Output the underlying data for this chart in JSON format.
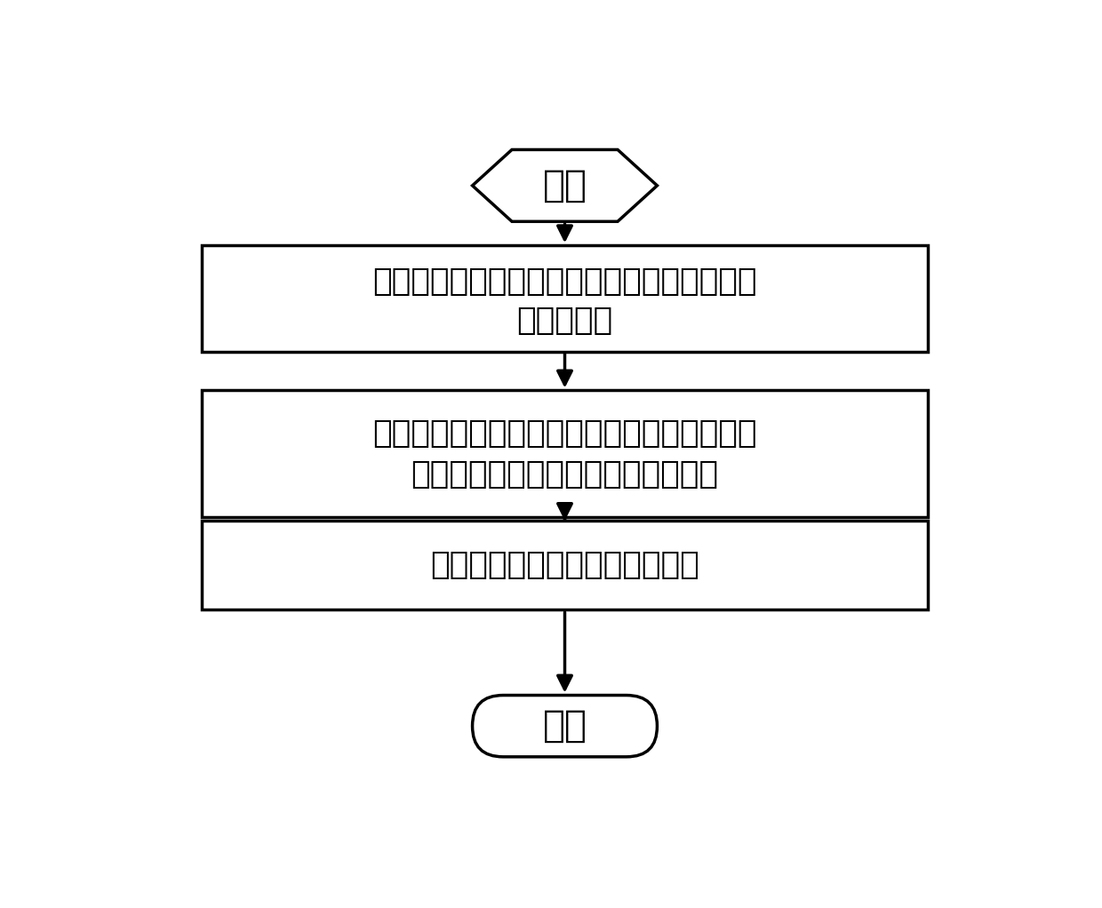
{
  "bg_color": "#ffffff",
  "text_color": "#000000",
  "box_color": "#ffffff",
  "box_edge_color": "#000000",
  "line_color": "#000000",
  "start_label": "开始",
  "end_label": "结束",
  "box1_line1": "污水通过进水管进入过滤器，空气通过空气管",
  "box1_line2": "进入过滤器",
  "box2_line1": "沸石填料与污水接触，吸附氨氮，同时悬浮状",
  "box2_line2": "态的沸石填料之间相互摩擦表面脱落",
  "box3_text": "脱落的沸石填料由出水管流出。",
  "font_size": 26,
  "lw": 2.5
}
